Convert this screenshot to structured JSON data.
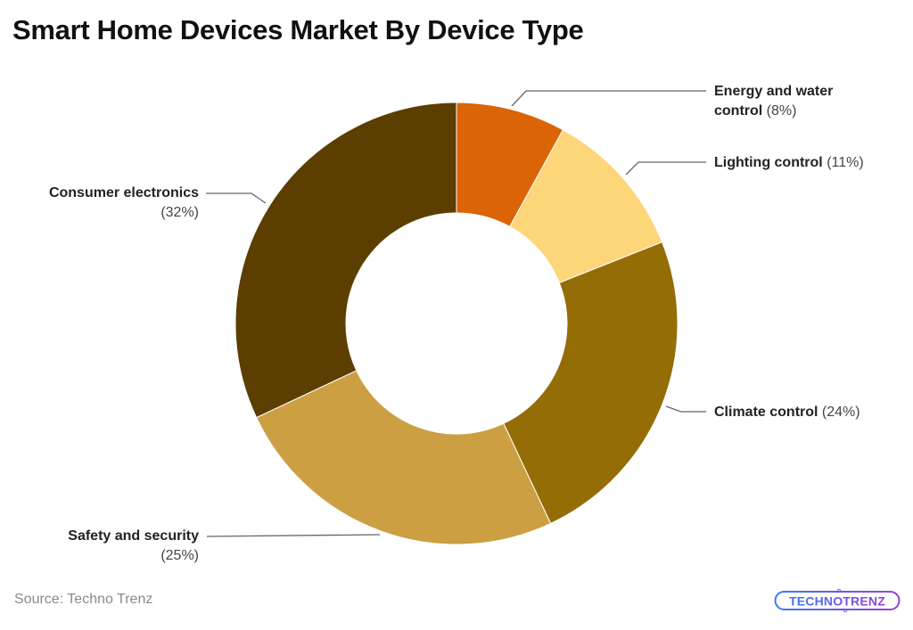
{
  "title": "Smart Home Devices Market By Device Type",
  "source": "Source: Techno Trenz",
  "logo": {
    "text": "TECHNOTRENZ",
    "colors": [
      "#3a7bf0",
      "#9b3fd6"
    ]
  },
  "chart_data": {
    "type": "pie",
    "subtype": "donut",
    "title": "Smart Home Devices Market By Device Type",
    "unit": "%",
    "start_angle": "12 o'clock, clockwise",
    "slices": [
      {
        "label": "Energy and water control",
        "value": 8,
        "color": "#db6406"
      },
      {
        "label": "Lighting control",
        "value": 11,
        "color": "#fdd67a"
      },
      {
        "label": "Climate control",
        "value": 24,
        "color": "#946d06"
      },
      {
        "label": "Safety and security",
        "value": 25,
        "color": "#cc9f43"
      },
      {
        "label": "Consumer electronics",
        "value": 32,
        "color": "#5c3e00"
      }
    ],
    "legend": "inline callout labels"
  },
  "labels": {
    "energy": {
      "name_line1": "Energy and water",
      "name_line2": "control",
      "pct": "(8%)"
    },
    "lighting": {
      "name": "Lighting control",
      "pct": "(11%)"
    },
    "climate": {
      "name": "Climate control",
      "pct": "(24%)"
    },
    "safety": {
      "name": "Safety and security",
      "pct": "(25%)"
    },
    "consumer": {
      "name": "Consumer electronics",
      "pct": "(32%)"
    }
  }
}
